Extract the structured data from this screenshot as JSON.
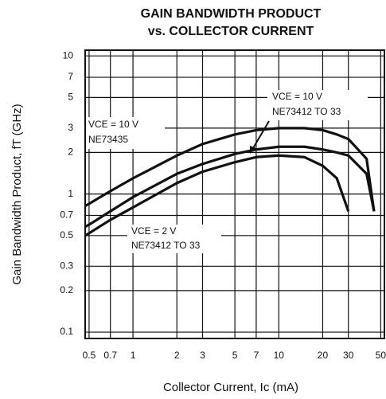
{
  "chart_data": {
    "type": "line",
    "title": [
      "GAIN BANDWIDTH PRODUCT",
      "vs. COLLECTOR CURRENT"
    ],
    "x_label": "Collector Current, Ic (mA)",
    "y_label": "Gain Bandwidth Product, fT (GHz)",
    "log_x": true,
    "log_y": true,
    "grid": true,
    "xlim": [
      0.47,
      53
    ],
    "ylim": [
      0.09,
      11
    ],
    "xticks": [
      0.5,
      0.7,
      1,
      2,
      3,
      5,
      7,
      10,
      20,
      30,
      50
    ],
    "yticks": [
      0.1,
      0.2,
      0.3,
      0.5,
      0.7,
      1,
      2,
      3,
      5,
      7,
      10
    ],
    "x": [
      0.47,
      0.5,
      0.7,
      1,
      2,
      3,
      5,
      7,
      10,
      15,
      20,
      25,
      30,
      40,
      45
    ],
    "series": [
      {
        "color": "#111111",
        "values": [
          0.82,
          0.85,
          1.05,
          1.3,
          1.9,
          2.3,
          2.7,
          2.9,
          3.0,
          3.0,
          2.9,
          2.7,
          2.5,
          1.8,
          0.75
        ]
      },
      {
        "color": "#111111",
        "values": [
          0.58,
          0.6,
          0.75,
          0.95,
          1.4,
          1.65,
          1.95,
          2.1,
          2.2,
          2.2,
          2.1,
          2.0,
          1.9,
          1.4,
          0.75
        ]
      },
      {
        "color": "#111111",
        "values": [
          0.5,
          0.52,
          0.65,
          0.8,
          1.2,
          1.45,
          1.7,
          1.85,
          1.9,
          1.85,
          1.6,
          1.3,
          0.75,
          null,
          null
        ]
      }
    ],
    "annotations": [
      [
        "VCE = 10 V",
        "NE73435"
      ],
      [
        "VCE = 10 V",
        "NE73412 TO 33"
      ],
      [
        "VCE = 2 V",
        "NE73412 TO 33"
      ]
    ]
  }
}
